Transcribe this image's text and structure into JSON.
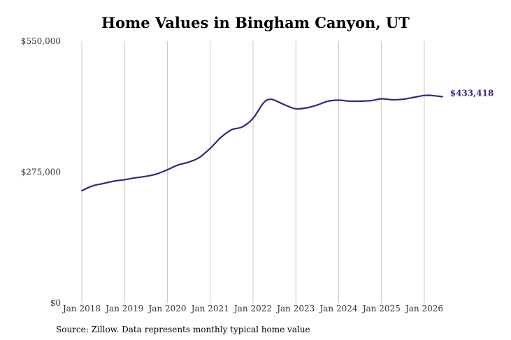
{
  "chart_data": {
    "type": "line",
    "title": "Home Values in Bingham Canyon, UT",
    "source": "Source: Zillow. Data represents monthly typical home value",
    "xlabel": "",
    "ylabel": "",
    "ylim": [
      0,
      550000
    ],
    "y_ticks": [
      {
        "value": 0,
        "label": "$0"
      },
      {
        "value": 275000,
        "label": "$275,000"
      },
      {
        "value": 550000,
        "label": "$550,000"
      }
    ],
    "x_ticks": [
      {
        "value": 2018,
        "label": "Jan 2018"
      },
      {
        "value": 2019,
        "label": "Jan 2019"
      },
      {
        "value": 2020,
        "label": "Jan 2020"
      },
      {
        "value": 2021,
        "label": "Jan 2021"
      },
      {
        "value": 2022,
        "label": "Jan 2022"
      },
      {
        "value": 2023,
        "label": "Jan 2023"
      },
      {
        "value": 2024,
        "label": "Jan 2024"
      },
      {
        "value": 2025,
        "label": "Jan 2025"
      },
      {
        "value": 2026,
        "label": "Jan 2026"
      }
    ],
    "xlim": [
      2018,
      2026.42
    ],
    "grid": "vertical",
    "line_color": "#2e2a7f",
    "grid_color": "#c8c8c8",
    "end_label": "$433,418",
    "series": [
      {
        "x": [
          2018.0,
          2018.25,
          2018.5,
          2018.75,
          2019.0,
          2019.25,
          2019.5,
          2019.75,
          2020.0,
          2020.25,
          2020.5,
          2020.75,
          2021.0,
          2021.25,
          2021.5,
          2021.75,
          2022.0,
          2022.25,
          2022.42,
          2022.6,
          2022.8,
          2023.0,
          2023.25,
          2023.5,
          2023.75,
          2024.0,
          2024.25,
          2024.5,
          2024.75,
          2025.0,
          2025.25,
          2025.5,
          2025.75,
          2026.0,
          2026.15,
          2026.42
        ],
        "y": [
          236000,
          246000,
          251000,
          256000,
          259000,
          263000,
          266000,
          271000,
          280000,
          290000,
          296000,
          306000,
          325000,
          348000,
          364000,
          370000,
          388000,
          421000,
          428000,
          422000,
          414000,
          408000,
          410000,
          416000,
          424000,
          426000,
          424000,
          424000,
          425000,
          429000,
          427000,
          428000,
          432000,
          436000,
          436000,
          433418
        ]
      }
    ]
  }
}
